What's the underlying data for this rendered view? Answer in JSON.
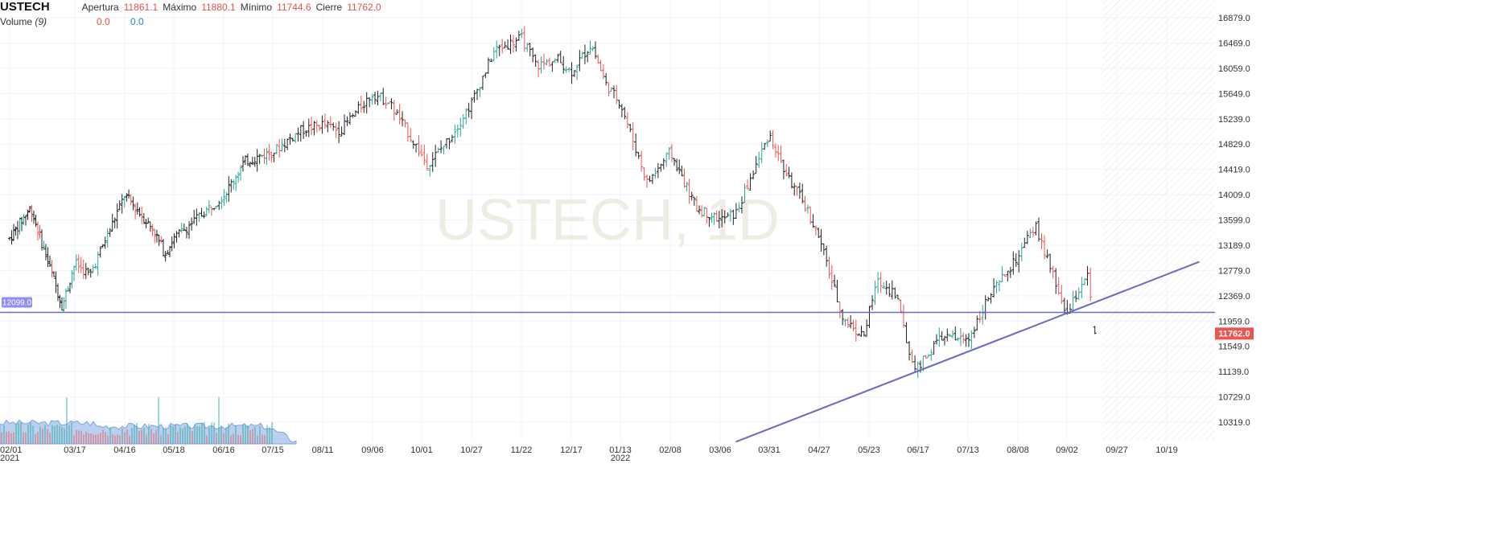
{
  "legend": {
    "symbol": "USTECH",
    "open_label": "Apertura",
    "open_value": "11861.1",
    "high_label": "Máximo",
    "high_value": "11880.1",
    "low_label": "Mínimo",
    "low_value": "11744.6",
    "close_label": "Cierre",
    "close_value": "11762.0"
  },
  "volume_legend": {
    "label": "Volume",
    "period": "(9)",
    "value_1": "0.0",
    "value_2": "0.0"
  },
  "watermark": "USTECH, 1D",
  "colors": {
    "up": "#26a69a",
    "down": "#ef5350",
    "neutral": "#222222",
    "trendline": "#6b6bbf",
    "price_tag": "#ef5350",
    "level_tag": "#8f8ff0",
    "volume_area": "#a9c4ee"
  },
  "chart_data": {
    "type": "candlestick",
    "title": "USTECH, 1D",
    "y_ticks": [
      "16879.0",
      "16469.0",
      "16059.0",
      "15649.0",
      "15239.0",
      "14829.0",
      "14419.0",
      "14009.0",
      "13599.0",
      "13189.0",
      "12779.0",
      "12369.0",
      "11959.0",
      "11549.0",
      "11139.0",
      "10729.0",
      "10319.0"
    ],
    "ylim": [
      10000,
      17050
    ],
    "x_ticks": [
      "02/01",
      "03/17",
      "04/16",
      "05/18",
      "06/16",
      "07/15",
      "08/11",
      "09/06",
      "10/01",
      "10/27",
      "11/22",
      "12/17",
      "01/13",
      "02/08",
      "03/06",
      "03/31",
      "04/27",
      "05/23",
      "06/17",
      "07/13",
      "08/08",
      "09/02",
      "09/27",
      "10/19"
    ],
    "year_labels": [
      {
        "tick": "02/01",
        "label": "2021"
      },
      {
        "tick": "01/13",
        "label": "2022"
      }
    ],
    "price_path": [
      [
        "02/01",
        13300
      ],
      [
        "02/16",
        13800
      ],
      [
        "03/08",
        12200
      ],
      [
        "03/17",
        12900
      ],
      [
        "03/26",
        12700
      ],
      [
        "04/16",
        14000
      ],
      [
        "05/04",
        13450
      ],
      [
        "05/12",
        13050
      ],
      [
        "05/18",
        13300
      ],
      [
        "06/16",
        14000
      ],
      [
        "06/29",
        14550
      ],
      [
        "07/15",
        14700
      ],
      [
        "07/30",
        15050
      ],
      [
        "08/11",
        15150
      ],
      [
        "08/20",
        15050
      ],
      [
        "09/06",
        15650
      ],
      [
        "09/15",
        15500
      ],
      [
        "10/04",
        14500
      ],
      [
        "10/15",
        14900
      ],
      [
        "10/27",
        15500
      ],
      [
        "11/08",
        16350
      ],
      [
        "11/22",
        16550
      ],
      [
        "11/30",
        16100
      ],
      [
        "12/10",
        16200
      ],
      [
        "12/17",
        16000
      ],
      [
        "12/28",
        16450
      ],
      [
        "01/05",
        15800
      ],
      [
        "01/13",
        15500
      ],
      [
        "01/27",
        14200
      ],
      [
        "02/08",
        14700
      ],
      [
        "02/23",
        13800
      ],
      [
        "03/06",
        13600
      ],
      [
        "03/14",
        13700
      ],
      [
        "03/31",
        15000
      ],
      [
        "04/08",
        14400
      ],
      [
        "04/20",
        13800
      ],
      [
        "04/27",
        13300
      ],
      [
        "05/09",
        12000
      ],
      [
        "05/20",
        11700
      ],
      [
        "05/27",
        12600
      ],
      [
        "06/06",
        12400
      ],
      [
        "06/13",
        11350
      ],
      [
        "06/17",
        11200
      ],
      [
        "06/29",
        11700
      ],
      [
        "07/13",
        11650
      ],
      [
        "07/22",
        12250
      ],
      [
        "08/08",
        13000
      ],
      [
        "08/17",
        13500
      ],
      [
        "08/24",
        12850
      ],
      [
        "09/02",
        12050
      ],
      [
        "09/12",
        12750
      ],
      [
        "09/16",
        11762
      ]
    ],
    "last_candle": {
      "open": 11861.1,
      "high": 11880.1,
      "low": 11744.6,
      "close": 11762.0
    },
    "horizontal_level": {
      "value": 12099.0,
      "label": "12099.0"
    },
    "trendline": {
      "from": {
        "date": "03/14",
        "price": 10000
      },
      "to": {
        "date": "11/03",
        "price": 12920
      }
    },
    "current_price": {
      "value": 11762.0,
      "label": "11762.0"
    }
  }
}
